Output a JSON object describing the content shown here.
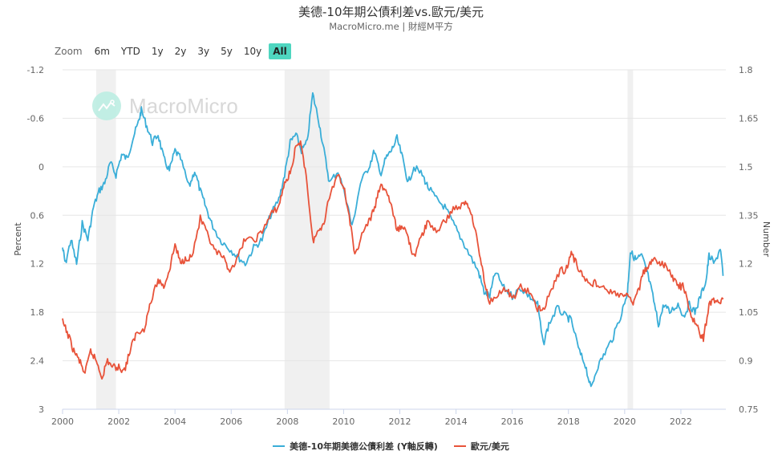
{
  "header": {
    "title": "美德-10年期公債利差vs.歐元/美元",
    "subtitle": "MacroMicro.me | 財經M平方"
  },
  "zoom": {
    "label": "Zoom",
    "buttons": [
      "6m",
      "YTD",
      "1y",
      "2y",
      "3y",
      "5y",
      "10y",
      "All"
    ],
    "active": "All"
  },
  "watermark": {
    "text": "MacroMicro",
    "icon": "chart-line-icon"
  },
  "chart_data": {
    "type": "line",
    "title": "美德-10年期公債利差vs.歐元/美元",
    "subtitle": "MacroMicro.me | 財經M平方",
    "xlabel": "",
    "x_ticks": [
      "2000",
      "2002",
      "2004",
      "2006",
      "2008",
      "2010",
      "2012",
      "2014",
      "2016",
      "2018",
      "2020",
      "2022"
    ],
    "xlim": [
      2000,
      2023.6
    ],
    "y_left": {
      "label": "Percent",
      "reversed": true,
      "ylim": [
        -1.2,
        3
      ],
      "ticks": [
        "-1.2",
        "-0.6",
        "0",
        "0.6",
        "1.2",
        "1.8",
        "2.4",
        "3"
      ]
    },
    "y_right": {
      "label": "Number",
      "ylim": [
        0.75,
        1.8
      ],
      "ticks": [
        "1.8",
        "1.65",
        "1.5",
        "1.35",
        "1.2",
        "1.05",
        "0.9",
        "0.75"
      ]
    },
    "recession_bands": [
      [
        2001.2,
        2001.9
      ],
      [
        2007.9,
        2009.5
      ],
      [
        2020.1,
        2020.3
      ]
    ],
    "grid": true,
    "legend_position": "bottom-center",
    "series": [
      {
        "name": "美德-10年期美德公債利差 (Y軸反轉)",
        "axis": "left",
        "color": "#3aaed8",
        "points": [
          [
            2000.0,
            1.0
          ],
          [
            2000.1,
            1.2
          ],
          [
            2000.3,
            0.9
          ],
          [
            2000.5,
            1.2
          ],
          [
            2000.7,
            0.7
          ],
          [
            2000.9,
            0.9
          ],
          [
            2001.1,
            0.5
          ],
          [
            2001.3,
            0.3
          ],
          [
            2001.5,
            0.2
          ],
          [
            2001.7,
            -0.05
          ],
          [
            2001.9,
            0.1
          ],
          [
            2002.1,
            -0.15
          ],
          [
            2002.3,
            -0.1
          ],
          [
            2002.5,
            -0.35
          ],
          [
            2002.7,
            -0.55
          ],
          [
            2002.8,
            -0.7
          ],
          [
            2003.0,
            -0.5
          ],
          [
            2003.2,
            -0.3
          ],
          [
            2003.4,
            -0.4
          ],
          [
            2003.6,
            -0.1
          ],
          [
            2003.8,
            0.05
          ],
          [
            2004.0,
            -0.2
          ],
          [
            2004.2,
            -0.1
          ],
          [
            2004.5,
            0.25
          ],
          [
            2004.7,
            0.05
          ],
          [
            2004.9,
            0.3
          ],
          [
            2005.1,
            0.5
          ],
          [
            2005.3,
            0.7
          ],
          [
            2005.6,
            0.9
          ],
          [
            2005.9,
            1.0
          ],
          [
            2006.2,
            1.1
          ],
          [
            2006.5,
            1.2
          ],
          [
            2006.8,
            1.0
          ],
          [
            2007.1,
            0.9
          ],
          [
            2007.4,
            0.6
          ],
          [
            2007.7,
            0.4
          ],
          [
            2007.9,
            0.1
          ],
          [
            2008.1,
            -0.3
          ],
          [
            2008.3,
            -0.4
          ],
          [
            2008.5,
            -0.2
          ],
          [
            2008.7,
            -0.3
          ],
          [
            2008.9,
            -0.9
          ],
          [
            2009.1,
            -0.6
          ],
          [
            2009.3,
            -0.2
          ],
          [
            2009.5,
            0.2
          ],
          [
            2009.8,
            0.05
          ],
          [
            2010.1,
            0.4
          ],
          [
            2010.3,
            0.75
          ],
          [
            2010.6,
            0.2
          ],
          [
            2010.9,
            0.0
          ],
          [
            2011.1,
            -0.2
          ],
          [
            2011.3,
            0.1
          ],
          [
            2011.5,
            -0.1
          ],
          [
            2011.7,
            -0.2
          ],
          [
            2011.9,
            -0.35
          ],
          [
            2012.1,
            -0.1
          ],
          [
            2012.3,
            0.2
          ],
          [
            2012.5,
            0.0
          ],
          [
            2012.8,
            0.1
          ],
          [
            2013.0,
            0.25
          ],
          [
            2013.3,
            0.4
          ],
          [
            2013.6,
            0.5
          ],
          [
            2013.9,
            0.7
          ],
          [
            2014.2,
            0.9
          ],
          [
            2014.5,
            1.1
          ],
          [
            2014.8,
            1.3
          ],
          [
            2015.0,
            1.55
          ],
          [
            2015.2,
            1.6
          ],
          [
            2015.4,
            1.3
          ],
          [
            2015.7,
            1.5
          ],
          [
            2016.0,
            1.6
          ],
          [
            2016.3,
            1.5
          ],
          [
            2016.6,
            1.6
          ],
          [
            2016.9,
            1.7
          ],
          [
            2017.1,
            2.2
          ],
          [
            2017.3,
            1.95
          ],
          [
            2017.6,
            1.75
          ],
          [
            2017.9,
            1.85
          ],
          [
            2018.1,
            1.9
          ],
          [
            2018.4,
            2.3
          ],
          [
            2018.6,
            2.45
          ],
          [
            2018.8,
            2.75
          ],
          [
            2019.0,
            2.5
          ],
          [
            2019.3,
            2.3
          ],
          [
            2019.6,
            2.1
          ],
          [
            2019.9,
            1.8
          ],
          [
            2020.1,
            1.55
          ],
          [
            2020.2,
            1.05
          ],
          [
            2020.4,
            1.15
          ],
          [
            2020.6,
            1.1
          ],
          [
            2020.8,
            1.3
          ],
          [
            2021.0,
            1.6
          ],
          [
            2021.2,
            1.95
          ],
          [
            2021.4,
            1.7
          ],
          [
            2021.6,
            1.8
          ],
          [
            2021.9,
            1.7
          ],
          [
            2022.1,
            1.85
          ],
          [
            2022.3,
            1.7
          ],
          [
            2022.5,
            1.8
          ],
          [
            2022.7,
            1.6
          ],
          [
            2022.9,
            1.4
          ],
          [
            2023.0,
            1.1
          ],
          [
            2023.2,
            1.2
          ],
          [
            2023.4,
            1.0
          ],
          [
            2023.5,
            1.35
          ]
        ]
      },
      {
        "name": "歐元/美元",
        "axis": "right",
        "color": "#e8533a",
        "points": [
          [
            2000.0,
            1.02
          ],
          [
            2000.2,
            0.98
          ],
          [
            2000.4,
            0.93
          ],
          [
            2000.6,
            0.9
          ],
          [
            2000.8,
            0.86
          ],
          [
            2001.0,
            0.93
          ],
          [
            2001.2,
            0.9
          ],
          [
            2001.4,
            0.85
          ],
          [
            2001.6,
            0.9
          ],
          [
            2001.8,
            0.88
          ],
          [
            2002.0,
            0.88
          ],
          [
            2002.2,
            0.87
          ],
          [
            2002.4,
            0.93
          ],
          [
            2002.6,
            0.98
          ],
          [
            2002.9,
            1.0
          ],
          [
            2003.1,
            1.07
          ],
          [
            2003.4,
            1.15
          ],
          [
            2003.6,
            1.13
          ],
          [
            2003.8,
            1.18
          ],
          [
            2004.0,
            1.26
          ],
          [
            2004.2,
            1.2
          ],
          [
            2004.4,
            1.22
          ],
          [
            2004.6,
            1.22
          ],
          [
            2004.9,
            1.34
          ],
          [
            2005.1,
            1.3
          ],
          [
            2005.4,
            1.24
          ],
          [
            2005.7,
            1.22
          ],
          [
            2005.9,
            1.18
          ],
          [
            2006.2,
            1.21
          ],
          [
            2006.5,
            1.28
          ],
          [
            2006.8,
            1.27
          ],
          [
            2007.1,
            1.3
          ],
          [
            2007.4,
            1.35
          ],
          [
            2007.7,
            1.38
          ],
          [
            2007.9,
            1.45
          ],
          [
            2008.1,
            1.48
          ],
          [
            2008.3,
            1.56
          ],
          [
            2008.5,
            1.57
          ],
          [
            2008.7,
            1.45
          ],
          [
            2008.9,
            1.27
          ],
          [
            2009.1,
            1.3
          ],
          [
            2009.3,
            1.33
          ],
          [
            2009.5,
            1.41
          ],
          [
            2009.8,
            1.48
          ],
          [
            2010.0,
            1.44
          ],
          [
            2010.2,
            1.35
          ],
          [
            2010.4,
            1.22
          ],
          [
            2010.6,
            1.28
          ],
          [
            2010.9,
            1.33
          ],
          [
            2011.1,
            1.37
          ],
          [
            2011.3,
            1.44
          ],
          [
            2011.5,
            1.43
          ],
          [
            2011.7,
            1.38
          ],
          [
            2011.9,
            1.3
          ],
          [
            2012.1,
            1.32
          ],
          [
            2012.3,
            1.28
          ],
          [
            2012.5,
            1.22
          ],
          [
            2012.8,
            1.29
          ],
          [
            2013.0,
            1.33
          ],
          [
            2013.3,
            1.3
          ],
          [
            2013.6,
            1.33
          ],
          [
            2013.9,
            1.37
          ],
          [
            2014.2,
            1.38
          ],
          [
            2014.4,
            1.39
          ],
          [
            2014.6,
            1.34
          ],
          [
            2014.8,
            1.25
          ],
          [
            2015.0,
            1.15
          ],
          [
            2015.2,
            1.08
          ],
          [
            2015.5,
            1.11
          ],
          [
            2015.8,
            1.12
          ],
          [
            2016.0,
            1.09
          ],
          [
            2016.3,
            1.13
          ],
          [
            2016.6,
            1.11
          ],
          [
            2016.9,
            1.06
          ],
          [
            2017.1,
            1.06
          ],
          [
            2017.4,
            1.12
          ],
          [
            2017.7,
            1.18
          ],
          [
            2017.9,
            1.18
          ],
          [
            2018.1,
            1.23
          ],
          [
            2018.3,
            1.2
          ],
          [
            2018.5,
            1.16
          ],
          [
            2018.8,
            1.14
          ],
          [
            2019.0,
            1.14
          ],
          [
            2019.3,
            1.12
          ],
          [
            2019.6,
            1.11
          ],
          [
            2019.9,
            1.1
          ],
          [
            2020.1,
            1.1
          ],
          [
            2020.3,
            1.08
          ],
          [
            2020.5,
            1.12
          ],
          [
            2020.7,
            1.18
          ],
          [
            2020.9,
            1.2
          ],
          [
            2021.1,
            1.21
          ],
          [
            2021.3,
            1.2
          ],
          [
            2021.5,
            1.19
          ],
          [
            2021.7,
            1.16
          ],
          [
            2021.9,
            1.13
          ],
          [
            2022.1,
            1.13
          ],
          [
            2022.3,
            1.05
          ],
          [
            2022.5,
            1.02
          ],
          [
            2022.7,
            0.98
          ],
          [
            2022.8,
            0.97
          ],
          [
            2023.0,
            1.07
          ],
          [
            2023.2,
            1.09
          ],
          [
            2023.4,
            1.08
          ],
          [
            2023.5,
            1.09
          ]
        ]
      }
    ]
  },
  "legend": {
    "items": [
      {
        "label": "美德-10年期美德公債利差 (Y軸反轉)",
        "color": "#3aaed8"
      },
      {
        "label": "歐元/美元",
        "color": "#e8533a"
      }
    ]
  }
}
